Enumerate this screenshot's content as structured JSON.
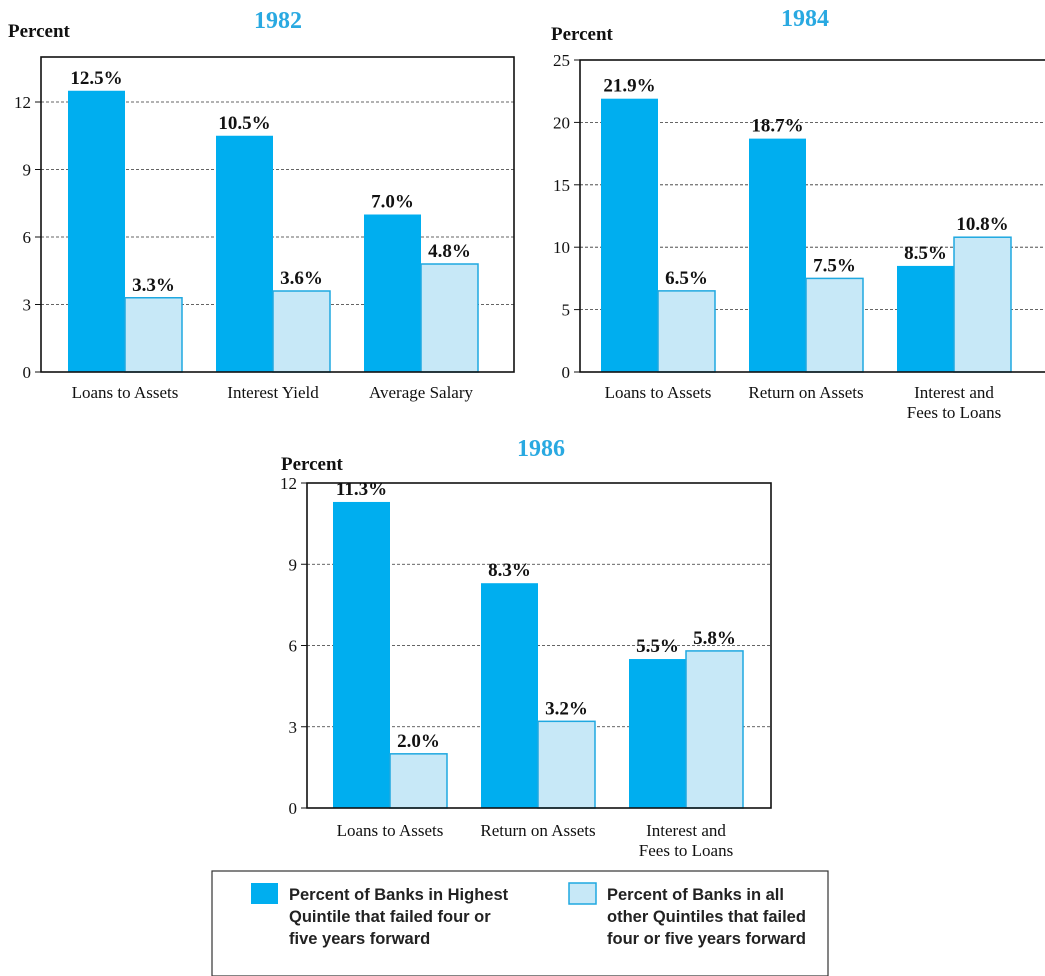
{
  "colors": {
    "series_dark": "#00aeef",
    "series_light": "#c7e8f7",
    "light_border": "#1fa8e0",
    "title": "#29a9e1",
    "grid": "#333333",
    "axis": "#111111"
  },
  "legend": {
    "entries": [
      {
        "lines": [
          "Percent of Banks in Highest",
          "Quintile that failed four or",
          "five years forward"
        ]
      },
      {
        "lines": [
          "Percent of Banks in all",
          "other Quintiles that failed",
          "four or five years forward"
        ]
      }
    ]
  },
  "chart_data": [
    {
      "type": "bar",
      "title": "1982",
      "ylabel": "Percent",
      "ylim": [
        0,
        14
      ],
      "yticks": [
        0,
        3,
        6,
        9,
        12
      ],
      "grid": true,
      "categories": [
        [
          "Loans to Assets"
        ],
        [
          "Interest Yield"
        ],
        [
          "Average Salary"
        ]
      ],
      "series": [
        {
          "values": [
            12.5,
            10.5,
            7.0
          ],
          "labels": [
            "12.5%",
            "10.5%",
            "7.0%"
          ]
        },
        {
          "values": [
            3.3,
            3.6,
            4.8
          ],
          "labels": [
            "3.3%",
            "3.6%",
            "4.8%"
          ]
        }
      ]
    },
    {
      "type": "bar",
      "title": "1984",
      "ylabel": "Percent",
      "ylim": [
        0,
        25
      ],
      "yticks": [
        0,
        5,
        10,
        15,
        20,
        25
      ],
      "grid": true,
      "categories": [
        [
          "Loans to Assets"
        ],
        [
          "Return on Assets"
        ],
        [
          "Interest and",
          "Fees to Loans"
        ]
      ],
      "series": [
        {
          "values": [
            21.9,
            18.7,
            8.5
          ],
          "labels": [
            "21.9%",
            "18.7%",
            "8.5%"
          ]
        },
        {
          "values": [
            6.5,
            7.5,
            10.8
          ],
          "labels": [
            "6.5%",
            "7.5%",
            "10.8%"
          ]
        }
      ]
    },
    {
      "type": "bar",
      "title": "1986",
      "ylabel": "Percent",
      "ylim": [
        0,
        12
      ],
      "yticks": [
        0,
        3,
        6,
        9,
        12
      ],
      "grid": true,
      "categories": [
        [
          "Loans to Assets"
        ],
        [
          "Return on Assets"
        ],
        [
          "Interest and",
          "Fees to Loans"
        ]
      ],
      "series": [
        {
          "values": [
            11.3,
            8.3,
            5.5
          ],
          "labels": [
            "11.3%",
            "8.3%",
            "5.5%"
          ]
        },
        {
          "values": [
            2.0,
            3.2,
            5.8
          ],
          "labels": [
            "2.0%",
            "3.2%",
            "5.8%"
          ]
        }
      ]
    }
  ]
}
